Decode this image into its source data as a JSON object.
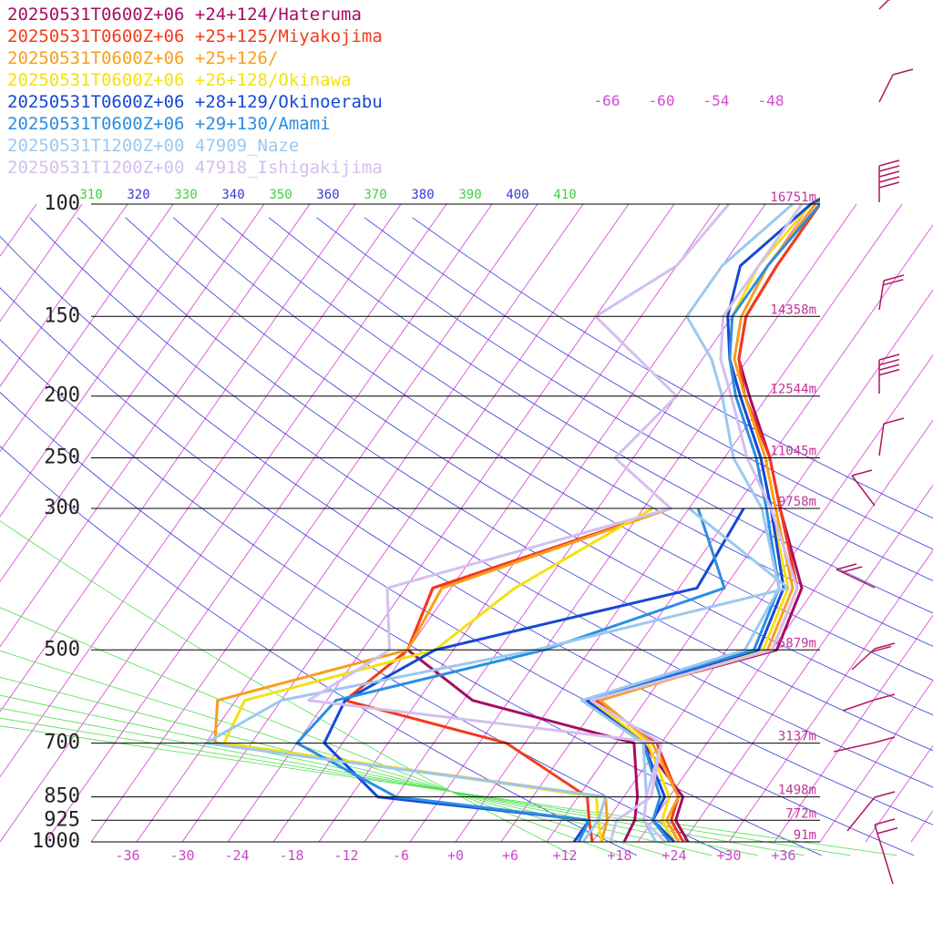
{
  "chart_data": {
    "type": "line",
    "title": "",
    "xlabel": "",
    "ylabel": "",
    "x_range": [
      -40,
      40
    ],
    "pressure_range": [
      1000,
      100
    ],
    "x_tick_labels": [
      "-36",
      "-30",
      "-24",
      "-18",
      "-12",
      "-6",
      "+0",
      "+6",
      "+12",
      "+18",
      "+24",
      "+30",
      "+36"
    ],
    "x_tick_values": [
      -36,
      -30,
      -24,
      -18,
      -12,
      -6,
      0,
      6,
      12,
      18,
      24,
      30,
      36
    ],
    "pressure_levels": [
      {
        "p": 100,
        "label": "100",
        "height": "16751m"
      },
      {
        "p": 150,
        "label": "150",
        "height": "14358m"
      },
      {
        "p": 200,
        "label": "200",
        "height": "12544m"
      },
      {
        "p": 250,
        "label": "250",
        "height": "11045m"
      },
      {
        "p": 300,
        "label": "300",
        "height": "9758m"
      },
      {
        "p": 500,
        "label": "500",
        "height": "5879m"
      },
      {
        "p": 700,
        "label": "700",
        "height": "3137m"
      },
      {
        "p": 850,
        "label": "850",
        "height": "1498m"
      },
      {
        "p": 925,
        "label": "925",
        "height": "772m"
      },
      {
        "p": 1000,
        "label": "1000",
        "height": "91m"
      }
    ],
    "theta_labels": [
      "310",
      "320",
      "330",
      "340",
      "350",
      "360",
      "370",
      "380",
      "390",
      "400",
      "410"
    ],
    "mixing_labels": [
      "-66",
      "-60",
      "-54",
      "-48"
    ],
    "series": [
      {
        "name": "20250531T0600Z+06 +24+124/Hateruma",
        "color": "#a80c62",
        "temp": [
          [
            1000,
            25.5
          ],
          [
            925,
            22.5
          ],
          [
            850,
            21.5
          ],
          [
            700,
            13
          ],
          [
            600,
            4
          ],
          [
            500,
            20.5
          ],
          [
            400,
            18.5
          ],
          [
            300,
            10
          ],
          [
            250,
            5
          ],
          [
            200,
            -2
          ],
          [
            175,
            -6
          ],
          [
            150,
            -8.5
          ],
          [
            125,
            -9
          ],
          [
            100,
            -9
          ],
          [
            90,
            -7
          ],
          [
            80,
            -2
          ],
          [
            70,
            8
          ],
          [
            60,
            22
          ],
          [
            55,
            30
          ]
        ],
        "dew": [
          [
            1000,
            18.5
          ],
          [
            925,
            18
          ],
          [
            850,
            16.5
          ],
          [
            700,
            12
          ],
          [
            600,
            -9
          ],
          [
            500,
            -20
          ],
          [
            400,
            -22
          ],
          [
            300,
            -2
          ]
        ]
      },
      {
        "name": "20250531T0600Z+06 +25+125/Miyakojima",
        "color": "#f53a1a",
        "temp": [
          [
            1000,
            25
          ],
          [
            925,
            22
          ],
          [
            850,
            21
          ],
          [
            700,
            14.5
          ],
          [
            600,
            4.5
          ],
          [
            500,
            20
          ],
          [
            400,
            18
          ],
          [
            300,
            10
          ],
          [
            250,
            5
          ],
          [
            200,
            -2.5
          ],
          [
            175,
            -6
          ],
          [
            150,
            -8.5
          ],
          [
            125,
            -9
          ],
          [
            100,
            -9
          ],
          [
            90,
            -7
          ],
          [
            80,
            -1
          ],
          [
            70,
            9
          ],
          [
            60,
            23
          ],
          [
            55,
            31
          ]
        ],
        "dew": [
          [
            1000,
            15
          ],
          [
            925,
            13
          ],
          [
            850,
            11
          ],
          [
            700,
            -2
          ],
          [
            600,
            -23
          ],
          [
            500,
            -20
          ],
          [
            400,
            -22
          ],
          [
            300,
            -2
          ]
        ]
      },
      {
        "name": "20250531T0600Z+06 +25+126/",
        "color": "#f79f1c",
        "temp": [
          [
            1000,
            24.5
          ],
          [
            925,
            21.5
          ],
          [
            850,
            21
          ],
          [
            700,
            14
          ],
          [
            600,
            5
          ],
          [
            500,
            19.5
          ],
          [
            400,
            17.5
          ],
          [
            300,
            9.5
          ],
          [
            250,
            4.5
          ],
          [
            200,
            -2.5
          ],
          [
            175,
            -6.5
          ],
          [
            150,
            -9
          ],
          [
            125,
            -10
          ],
          [
            100,
            -9.5
          ],
          [
            90,
            -7.5
          ],
          [
            80,
            -2
          ],
          [
            70,
            8
          ],
          [
            60,
            22
          ],
          [
            55,
            30
          ]
        ],
        "dew": [
          [
            1000,
            16
          ],
          [
            925,
            15
          ],
          [
            850,
            13
          ],
          [
            700,
            -34
          ],
          [
            600,
            -37
          ],
          [
            500,
            -20
          ],
          [
            400,
            -21
          ],
          [
            300,
            -2
          ]
        ]
      },
      {
        "name": "20250531T0600Z+06 +26+128/Okinawa",
        "color": "#f5e10e",
        "temp": [
          [
            1000,
            24
          ],
          [
            925,
            21
          ],
          [
            850,
            20
          ],
          [
            700,
            13.5
          ],
          [
            600,
            4
          ],
          [
            500,
            19
          ],
          [
            400,
            17
          ],
          [
            300,
            9
          ],
          [
            250,
            4
          ],
          [
            200,
            -3
          ],
          [
            175,
            -7
          ],
          [
            150,
            -10
          ],
          [
            125,
            -11
          ],
          [
            100,
            -10
          ],
          [
            90,
            -7
          ],
          [
            80,
            0
          ],
          [
            70,
            10
          ],
          [
            60,
            25
          ],
          [
            55,
            34
          ]
        ],
        "dew": [
          [
            1000,
            16
          ],
          [
            925,
            14
          ],
          [
            850,
            12
          ],
          [
            700,
            -33
          ],
          [
            600,
            -34
          ],
          [
            500,
            -17
          ],
          [
            400,
            -13
          ],
          [
            300,
            -4
          ]
        ]
      },
      {
        "name": "20250531T0600Z+06 +28+129/Okinoerabu",
        "color": "#1648d6",
        "temp": [
          [
            1000,
            24
          ],
          [
            925,
            20
          ],
          [
            850,
            19.5
          ],
          [
            700,
            13
          ],
          [
            600,
            3.5
          ],
          [
            500,
            18.5
          ],
          [
            400,
            16.5
          ],
          [
            300,
            9
          ],
          [
            250,
            4
          ],
          [
            200,
            -3
          ],
          [
            175,
            -7
          ],
          [
            150,
            -10.5
          ],
          [
            125,
            -13
          ],
          [
            100,
            -10
          ],
          [
            90,
            -6.5
          ],
          [
            80,
            -1
          ],
          [
            70,
            9
          ],
          [
            60,
            23
          ],
          [
            55,
            32
          ]
        ],
        "dew": [
          [
            1000,
            13
          ],
          [
            925,
            13
          ],
          [
            850,
            -12
          ],
          [
            700,
            -22
          ],
          [
            600,
            -23
          ],
          [
            500,
            -17
          ],
          [
            400,
            7
          ],
          [
            300,
            6
          ]
        ]
      },
      {
        "name": "20250531T0600Z+06 +29+130/Amami",
        "color": "#2a8ee3",
        "temp": [
          [
            1000,
            23.5
          ],
          [
            925,
            20
          ],
          [
            850,
            19
          ],
          [
            700,
            13
          ],
          [
            600,
            3
          ],
          [
            500,
            18
          ],
          [
            400,
            16
          ],
          [
            300,
            8.5
          ],
          [
            250,
            3.5
          ],
          [
            200,
            -3.5
          ],
          [
            175,
            -7
          ],
          [
            150,
            -10
          ],
          [
            125,
            -10
          ],
          [
            100,
            -9
          ],
          [
            90,
            -5.5
          ],
          [
            80,
            0
          ],
          [
            70,
            10
          ],
          [
            60,
            24
          ],
          [
            55,
            33
          ]
        ],
        "dew": [
          [
            1000,
            13.5
          ],
          [
            925,
            13
          ],
          [
            850,
            -10
          ],
          [
            700,
            -25
          ],
          [
            600,
            -24
          ],
          [
            500,
            -5
          ],
          [
            400,
            10
          ],
          [
            300,
            1
          ]
        ]
      },
      {
        "name": "20250531T1200Z+00 47909_Naze",
        "color": "#9bc8f0",
        "temp": [
          [
            1000,
            22
          ],
          [
            925,
            19
          ],
          [
            850,
            17.5
          ],
          [
            700,
            13
          ],
          [
            600,
            3
          ],
          [
            500,
            17
          ],
          [
            400,
            16
          ],
          [
            300,
            8
          ],
          [
            250,
            1
          ],
          [
            200,
            -5
          ],
          [
            175,
            -9
          ],
          [
            150,
            -15
          ],
          [
            125,
            -15
          ],
          [
            100,
            -12
          ]
        ],
        "dew": [
          [
            1000,
            14
          ],
          [
            925,
            14
          ],
          [
            850,
            13
          ],
          [
            700,
            -35
          ],
          [
            600,
            -30
          ],
          [
            500,
            -6
          ],
          [
            400,
            17
          ],
          [
            300,
            0
          ]
        ]
      },
      {
        "name": "20250531T1200Z+00 47918_Ishigakijima",
        "color": "#d2c0f0",
        "temp": [
          [
            1000,
            23
          ],
          [
            925,
            19
          ],
          [
            850,
            17.5
          ],
          [
            700,
            15
          ],
          [
            600,
            4
          ],
          [
            500,
            20
          ],
          [
            400,
            18
          ],
          [
            300,
            9
          ],
          [
            250,
            2.5
          ],
          [
            200,
            -4
          ],
          [
            175,
            -8
          ],
          [
            150,
            -11
          ],
          [
            100,
            -11
          ]
        ],
        "dew": [
          [
            1000,
            17
          ],
          [
            925,
            16
          ],
          [
            850,
            18
          ],
          [
            700,
            15
          ],
          [
            600,
            -27
          ],
          [
            500,
            -22
          ],
          [
            400,
            -27
          ],
          [
            300,
            -2
          ],
          [
            250,
            -12
          ],
          [
            200,
            -10
          ],
          [
            150,
            -25
          ],
          [
            125,
            -20
          ],
          [
            100,
            -19
          ]
        ]
      }
    ],
    "wind_barbs": [
      {
        "color": "#b0185f",
        "labels": []
      }
    ]
  }
}
